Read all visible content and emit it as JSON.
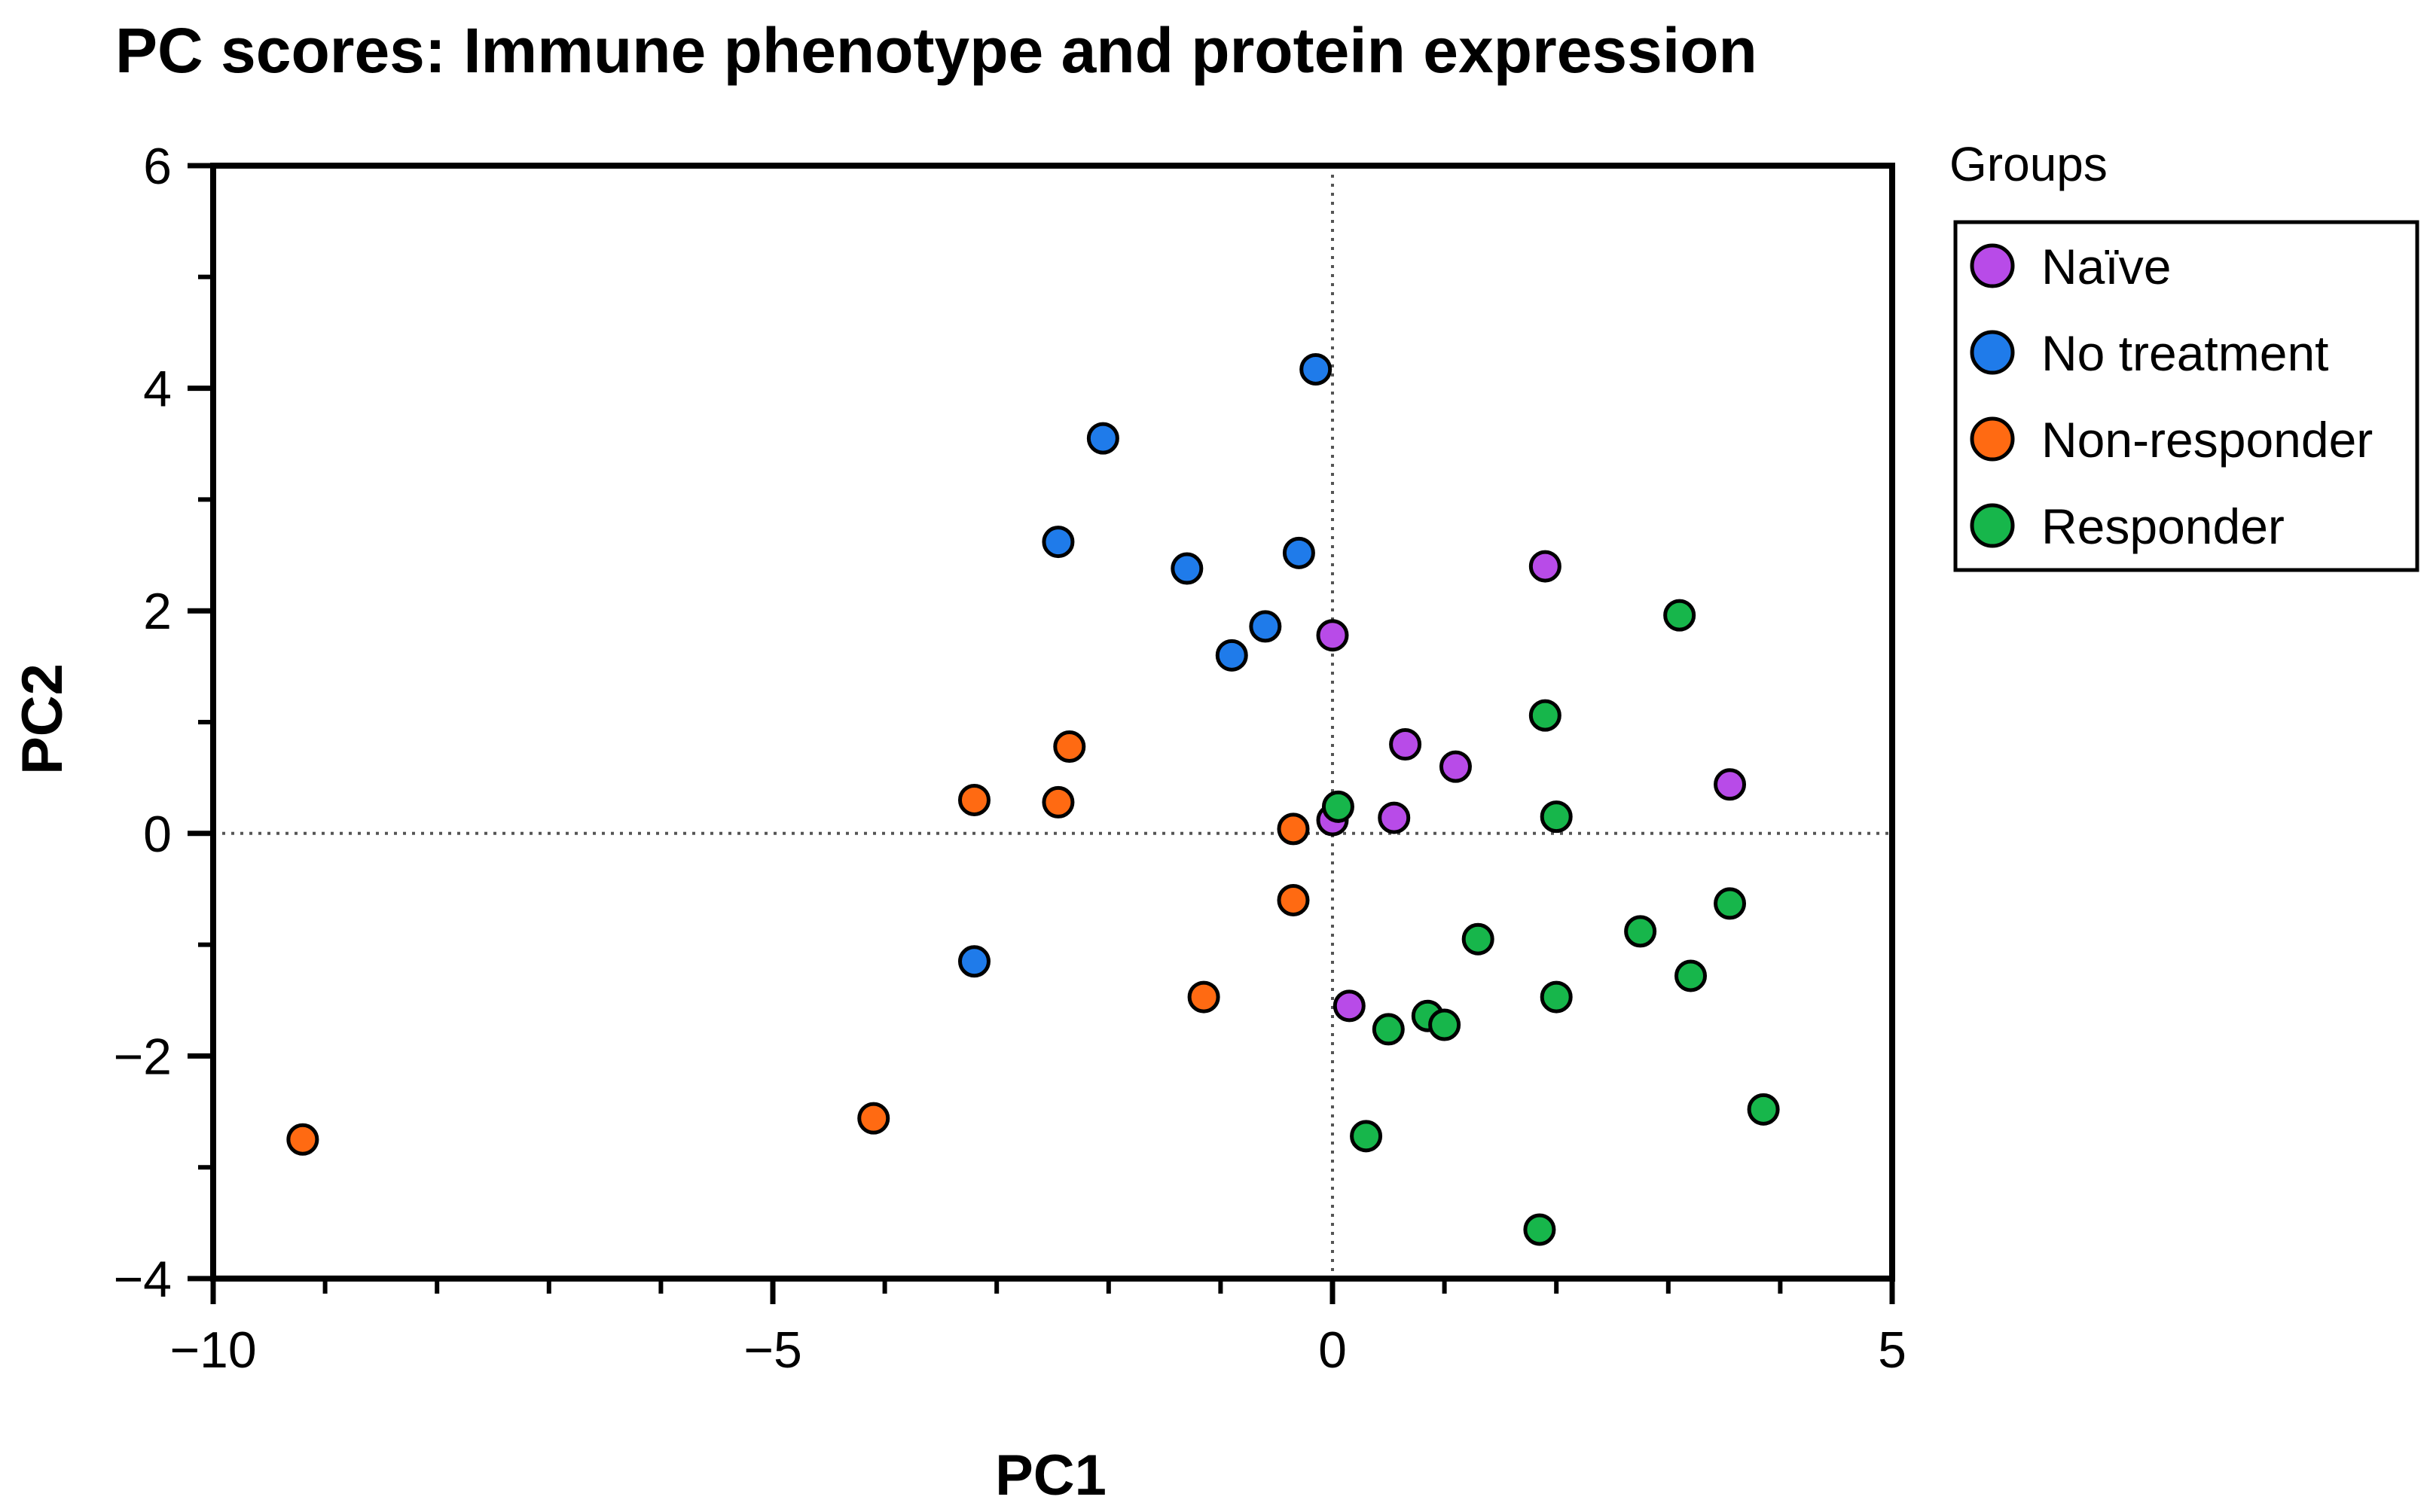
{
  "colors": {
    "naive": "#B84BE8",
    "no_treatment": "#1F7BEA",
    "non_responder": "#FF6A12",
    "responder": "#17B64B"
  },
  "chart_data": {
    "type": "scatter",
    "title": "PC scores: Immune phenotype and protein expression",
    "xlabel": "PC1",
    "ylabel": "PC2",
    "xlim": [
      -10,
      5
    ],
    "ylim": [
      -4,
      6
    ],
    "xticks": [
      -10,
      -5,
      0,
      5
    ],
    "yticks": [
      -4,
      -2,
      0,
      2,
      4,
      6
    ],
    "xtick_labels": [
      "−10",
      "−5",
      "0",
      "5"
    ],
    "ytick_labels": [
      "−4",
      "−2",
      "0",
      "2",
      "4",
      "6"
    ],
    "reference_lines": {
      "x": 0,
      "y": 0,
      "style": "dotted"
    },
    "legend": {
      "title": "Groups",
      "position": "right"
    },
    "series": [
      {
        "name": "Naïve",
        "color": "#B84BE8",
        "points": [
          [
            1.9,
            2.4
          ],
          [
            0.0,
            1.78
          ],
          [
            0.65,
            0.8
          ],
          [
            1.1,
            0.6
          ],
          [
            3.55,
            0.44
          ],
          [
            0.55,
            0.14
          ],
          [
            0.0,
            0.12
          ],
          [
            0.15,
            -1.55
          ]
        ]
      },
      {
        "name": "No treatment",
        "color": "#1F7BEA",
        "points": [
          [
            -0.15,
            4.17
          ],
          [
            -2.05,
            3.55
          ],
          [
            -2.45,
            2.62
          ],
          [
            -0.3,
            2.52
          ],
          [
            -1.3,
            2.38
          ],
          [
            -0.6,
            1.86
          ],
          [
            -0.9,
            1.6
          ],
          [
            -3.2,
            -1.15
          ]
        ]
      },
      {
        "name": "Non-responder",
        "color": "#FF6A12",
        "points": [
          [
            -2.35,
            0.78
          ],
          [
            -3.2,
            0.3
          ],
          [
            -2.45,
            0.28
          ],
          [
            -0.35,
            0.04
          ],
          [
            -0.35,
            -0.6
          ],
          [
            -1.15,
            -1.47
          ],
          [
            -4.1,
            -2.56
          ],
          [
            -9.2,
            -2.75
          ]
        ]
      },
      {
        "name": "Responder",
        "color": "#17B64B",
        "points": [
          [
            3.1,
            1.96
          ],
          [
            1.9,
            1.06
          ],
          [
            0.05,
            0.24
          ],
          [
            2.0,
            0.15
          ],
          [
            3.55,
            -0.63
          ],
          [
            2.75,
            -0.88
          ],
          [
            1.3,
            -0.95
          ],
          [
            3.2,
            -1.28
          ],
          [
            2.0,
            -1.47
          ],
          [
            0.85,
            -1.64
          ],
          [
            1.0,
            -1.72
          ],
          [
            0.5,
            -1.76
          ],
          [
            3.85,
            -2.48
          ],
          [
            0.3,
            -2.72
          ],
          [
            1.85,
            -3.56
          ]
        ]
      }
    ]
  }
}
